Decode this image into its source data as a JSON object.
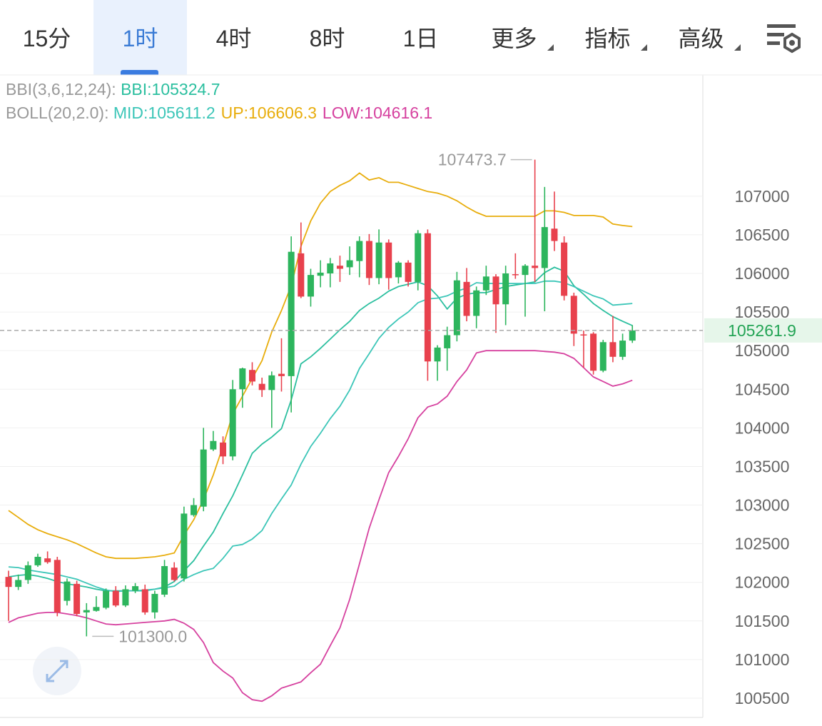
{
  "tabs": [
    {
      "label": "15分"
    },
    {
      "label": "1时",
      "selected": true
    },
    {
      "label": "4时"
    },
    {
      "label": "8时"
    },
    {
      "label": "1日"
    },
    {
      "label": "更多",
      "dropdown": true
    },
    {
      "label": "指标",
      "dropdown": true
    },
    {
      "label": "高级",
      "dropdown": true
    }
  ],
  "chart_data": {
    "type": "candlestick",
    "ylim": [
      100250,
      108570
    ],
    "yticks": [
      100500,
      101000,
      101500,
      102000,
      102500,
      103000,
      103500,
      104000,
      104500,
      105000,
      105500,
      106000,
      106500,
      107000
    ],
    "grid": true,
    "up_color": "#2db55d",
    "down_color": "#e8414d",
    "open": [
      102070,
      101940,
      102030,
      102220,
      102310,
      102290,
      101760,
      101980,
      101610,
      101630,
      101670,
      101890,
      101700,
      101890,
      101910,
      101610,
      101840,
      102190,
      102050,
      102870,
      102980,
      103720,
      103810,
      103630,
      104500,
      104750,
      104570,
      104490,
      104700,
      104670,
      106260,
      105700,
      105970,
      106000,
      106100,
      106080,
      106160,
      106420,
      105940,
      106400,
      105950,
      106140,
      105890,
      106520,
      104860,
      105030,
      105200,
      105890,
      105450,
      105780,
      105960,
      105600,
      105990,
      105980,
      106100,
      106070,
      106580,
      106400,
      105710,
      105210,
      105220,
      104740,
      105110,
      104920,
      105130
    ],
    "close": [
      101940,
      102030,
      102220,
      102330,
      102260,
      101610,
      102010,
      101590,
      101640,
      101680,
      101890,
      101700,
      101910,
      101950,
      101610,
      101850,
      102210,
      102030,
      102890,
      103000,
      103720,
      103830,
      103630,
      104500,
      104770,
      104600,
      104490,
      104680,
      104670,
      106280,
      105700,
      105980,
      106010,
      106130,
      106060,
      106170,
      106420,
      105940,
      106400,
      105940,
      106140,
      105890,
      106520,
      104860,
      105040,
      105200,
      105910,
      105450,
      105780,
      105960,
      105600,
      106000,
      105980,
      106100,
      106070,
      106600,
      106420,
      105710,
      105220,
      105200,
      104740,
      105110,
      104920,
      105130,
      105261.9
    ],
    "high": [
      102150,
      102100,
      102270,
      102370,
      102400,
      102330,
      102050,
      102020,
      101730,
      101820,
      101920,
      101950,
      101960,
      101990,
      101970,
      101890,
      102290,
      102260,
      102980,
      103090,
      104000,
      103960,
      103890,
      104620,
      104780,
      104850,
      104650,
      104730,
      105160,
      106480,
      106660,
      106060,
      106170,
      106200,
      106230,
      106350,
      106480,
      106510,
      106570,
      106440,
      106160,
      106170,
      106560,
      106570,
      105070,
      105310,
      106020,
      106070,
      105830,
      106100,
      105990,
      106100,
      106260,
      106120,
      107473.7,
      107120,
      107060,
      106480,
      105750,
      105260,
      105240,
      105140,
      105450,
      105220,
      105330
    ],
    "low": [
      101500,
      101900,
      101980,
      102200,
      102240,
      101560,
      101700,
      101560,
      101300,
      101620,
      101650,
      101680,
      101680,
      101860,
      101580,
      101530,
      101810,
      102010,
      102010,
      102850,
      102920,
      103700,
      103530,
      103580,
      104260,
      104550,
      104400,
      104000,
      104470,
      104200,
      105680,
      105570,
      105820,
      105820,
      105890,
      105980,
      105950,
      105850,
      105860,
      105790,
      105870,
      105830,
      105780,
      104610,
      104610,
      104740,
      105120,
      105380,
      105290,
      105720,
      105230,
      105330,
      105930,
      105440,
      105890,
      105510,
      106290,
      105650,
      105060,
      104780,
      104690,
      104720,
      104850,
      104880,
      105100
    ],
    "indicators": [
      {
        "label": "BBI(3,6,12,24):",
        "series": [
          {
            "name": "BBI:105324.7",
            "color": "#2bbf9f",
            "values": [
              102070,
              102090,
              102100,
              102080,
              102050,
              102010,
              101980,
              101960,
              101940,
              101910,
              101890,
              101890,
              101890,
              101890,
              101890,
              101910,
              101940,
              102010,
              102150,
              102280,
              102470,
              102650,
              102890,
              103120,
              103390,
              103670,
              103790,
              103880,
              103990,
              104360,
              104830,
              104920,
              105030,
              105150,
              105270,
              105380,
              105520,
              105610,
              105680,
              105770,
              105830,
              105860,
              105890,
              105840,
              105710,
              105540,
              105680,
              105730,
              105750,
              105750,
              105790,
              105830,
              105850,
              105870,
              105890,
              106010,
              106080,
              106030,
              105840,
              105730,
              105610,
              105520,
              105440,
              105380,
              105324.7
            ]
          }
        ]
      },
      {
        "label": "BOLL(20,2.0):",
        "series": [
          {
            "name": "MID:105611.2",
            "color": "#3cc6b8",
            "values": [
              102200,
              102190,
              102160,
              102140,
              102120,
              102100,
              102070,
              102040,
              101990,
              101940,
              101900,
              101880,
              101890,
              101890,
              101900,
              101910,
              101930,
              101950,
              102040,
              102100,
              102150,
              102180,
              102310,
              102470,
              102490,
              102560,
              102670,
              102890,
              103080,
              103260,
              103530,
              103760,
              103930,
              104120,
              104280,
              104490,
              104770,
              104960,
              105160,
              105300,
              105410,
              105500,
              105620,
              105670,
              105680,
              105710,
              105770,
              105810,
              105880,
              105870,
              105870,
              105870,
              105870,
              105870,
              105870,
              105900,
              105900,
              105880,
              105830,
              105770,
              105710,
              105670,
              105590,
              105600,
              105611.2
            ]
          },
          {
            "name": "UP:106606.3",
            "color": "#e8ad0c",
            "values": [
              102930,
              102840,
              102750,
              102680,
              102630,
              102590,
              102550,
              102500,
              102440,
              102380,
              102330,
              102310,
              102310,
              102310,
              102320,
              102330,
              102350,
              102380,
              102610,
              102810,
              103070,
              103390,
              103760,
              104180,
              104410,
              104640,
              104870,
              105240,
              105520,
              105840,
              106350,
              106680,
              106910,
              107060,
              107140,
              107200,
              107300,
              107210,
              107240,
              107180,
              107180,
              107140,
              107100,
              107060,
              107040,
              107000,
              106940,
              106860,
              106790,
              106740,
              106740,
              106740,
              106740,
              106740,
              106740,
              106810,
              106810,
              106790,
              106750,
              106750,
              106750,
              106730,
              106640,
              106620,
              106606.3
            ]
          },
          {
            "name": "LOW:104616.1",
            "color": "#d6419f",
            "values": [
              101480,
              101540,
              101570,
              101600,
              101610,
              101610,
              101590,
              101570,
              101540,
              101500,
              101460,
              101450,
              101460,
              101470,
              101480,
              101490,
              101500,
              101520,
              101470,
              101390,
              101220,
              100960,
              100850,
              100760,
              100570,
              100480,
              100460,
              100530,
              100630,
              100670,
              100710,
              100830,
              100940,
              101180,
              101410,
              101780,
              102240,
              102700,
              103070,
              103420,
              103630,
              103860,
              104130,
              104270,
              104310,
              104410,
              104600,
              104750,
              104970,
              105000,
              105000,
              105000,
              105000,
              105000,
              105000,
              104990,
              104980,
              104960,
              104900,
              104780,
              104660,
              104600,
              104540,
              104570,
              104616.1
            ]
          }
        ]
      }
    ],
    "last_price": 105261.9,
    "max_annotation": 107473.7,
    "min_annotation": {
      "value": 101300,
      "label": "101300.0"
    }
  }
}
